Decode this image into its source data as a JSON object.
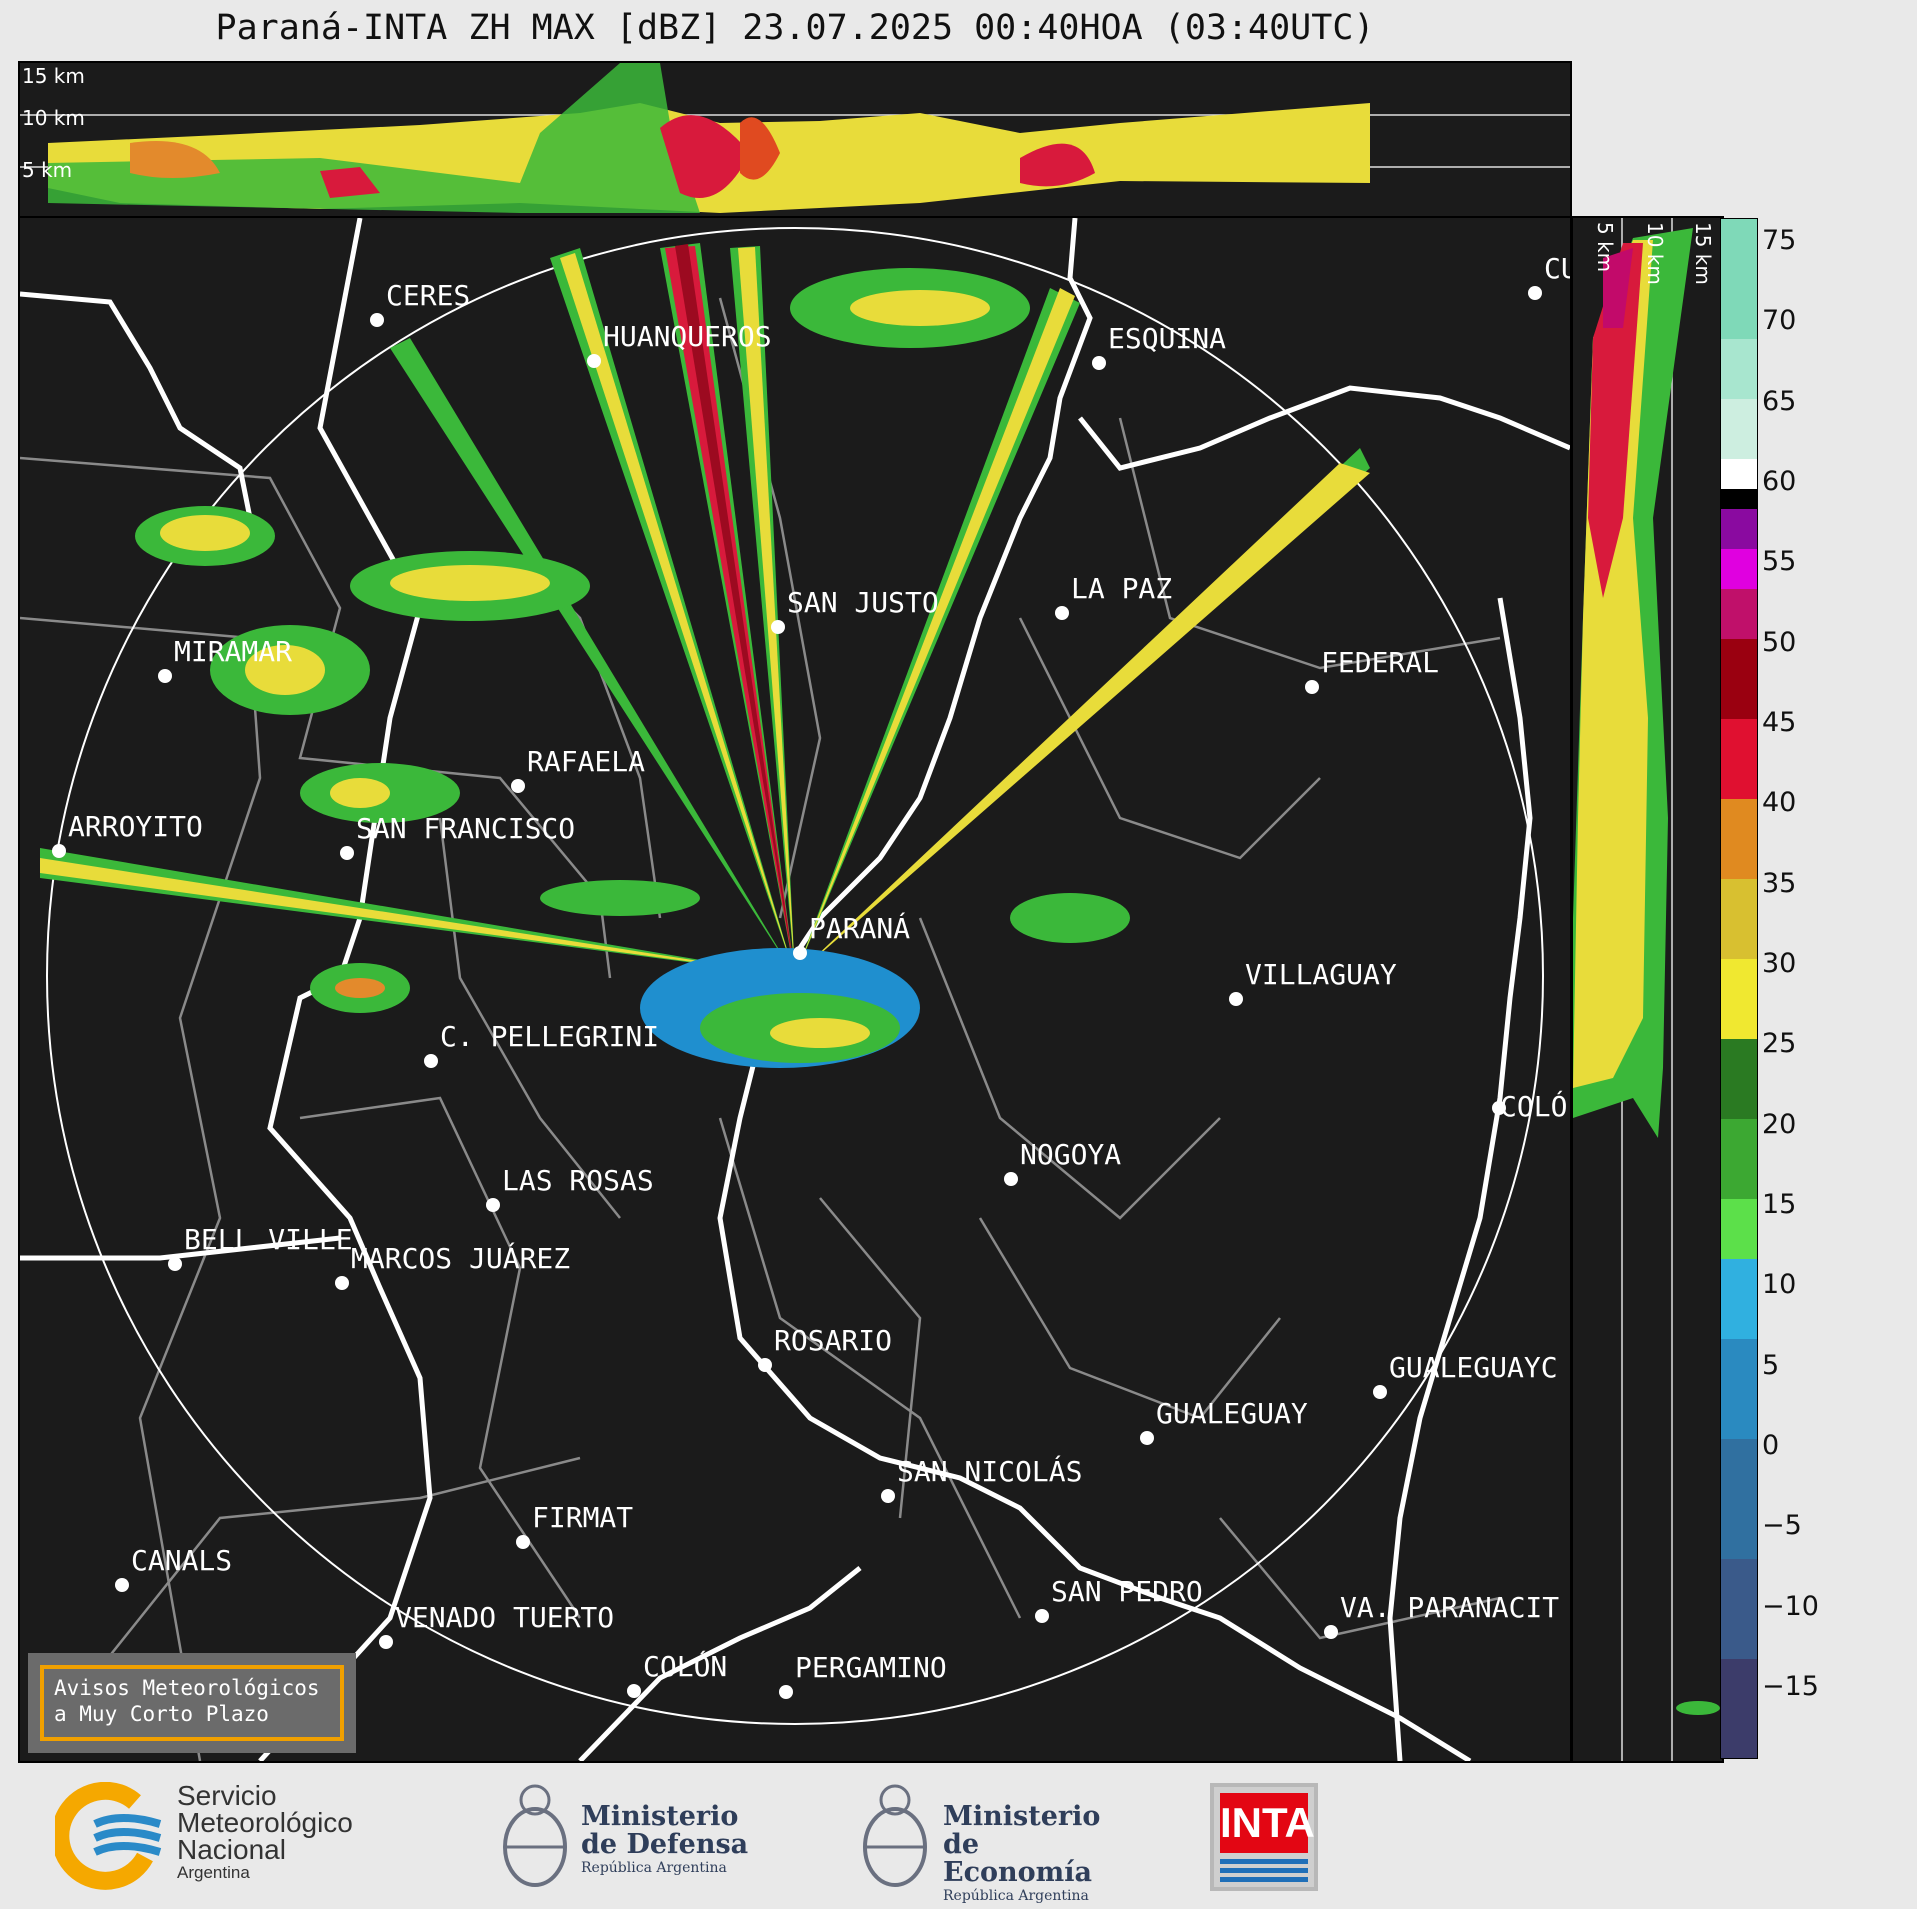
{
  "title": "Paraná-INTA ZH MAX [dBZ] 23.07.2025 00:40HOA (03:40UTC)",
  "top_panel": {
    "height_labels": [
      "15 km",
      "10 km",
      "5 km"
    ]
  },
  "right_panel": {
    "height_labels": [
      "5 km",
      "10 km",
      "15 km"
    ]
  },
  "colorbar": {
    "ticks": [
      "75",
      "70",
      "65",
      "60",
      "55",
      "50",
      "45",
      "40",
      "35",
      "30",
      "25",
      "20",
      "15",
      "10",
      "5",
      "0",
      "−5",
      "−10",
      "−15"
    ]
  },
  "cities": [
    {
      "name": "CERES"
    },
    {
      "name": "HUANQUEROS"
    },
    {
      "name": "ESQUINA"
    },
    {
      "name": "CU"
    },
    {
      "name": "SAN JUSTO"
    },
    {
      "name": "LA PAZ"
    },
    {
      "name": "MIRAMAR"
    },
    {
      "name": "FEDERAL"
    },
    {
      "name": "RAFAELA"
    },
    {
      "name": "ARROYITO"
    },
    {
      "name": "SAN FRANCISCO"
    },
    {
      "name": "PARANÁ"
    },
    {
      "name": "VILLAGUAY"
    },
    {
      "name": "C. PELLEGRINI"
    },
    {
      "name": "COLÓ"
    },
    {
      "name": "NOGOYA"
    },
    {
      "name": "LAS ROSAS"
    },
    {
      "name": "BELL VILLE"
    },
    {
      "name": "MARCOS JUÁREZ"
    },
    {
      "name": "ROSARIO"
    },
    {
      "name": "GUALEGUAYC"
    },
    {
      "name": "GUALEGUAY"
    },
    {
      "name": "SAN NICOLÁS"
    },
    {
      "name": "FIRMAT"
    },
    {
      "name": "CANALS"
    },
    {
      "name": "SAN PEDRO"
    },
    {
      "name": "VENADO TUERTO"
    },
    {
      "name": "VA. PARANACIT"
    },
    {
      "name": "COLÓN"
    },
    {
      "name": "PERGAMINO"
    }
  ],
  "avisos": {
    "line1": "Avisos Meteorológicos",
    "line2": "a Muy Corto Plazo"
  },
  "logos": {
    "smn": {
      "line1": "Servicio",
      "line2": "Meteorológico",
      "line3": "Nacional",
      "line4": "Argentina"
    },
    "defensa": {
      "line1": "Ministerio",
      "line2": "de Defensa",
      "line3": "República Argentina"
    },
    "economia": {
      "line1": "Ministerio",
      "line2": "de Economía",
      "line3": "República Argentina"
    },
    "inta": {
      "text": "INTA"
    }
  },
  "colors": {
    "panel_bg": "#1b1b1b",
    "border": "#ffffff",
    "province": "#8a8a8a"
  }
}
